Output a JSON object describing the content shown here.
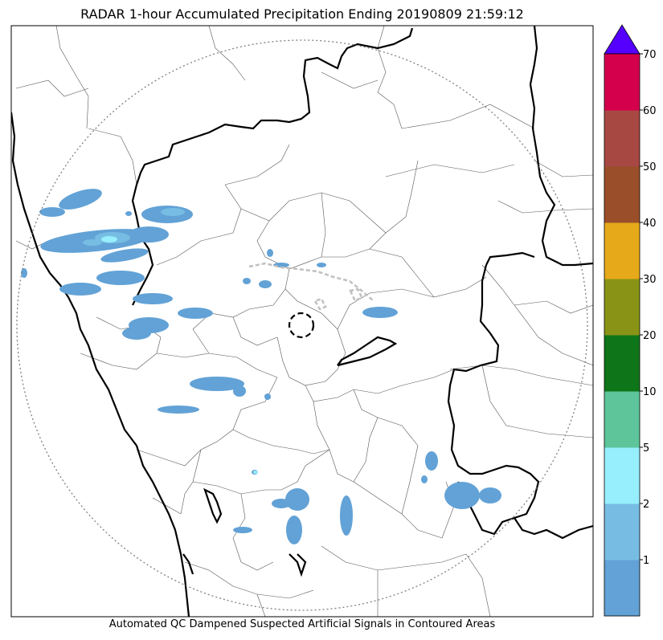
{
  "title": "RADAR 1-hour Accumulated Precipitation Ending 20190809 21:59:12",
  "footer": "Automated QC Dampened Suspected Artificial Signals in Contoured Areas",
  "colorbar": {
    "ticks": [
      "1",
      "2",
      "5",
      "10",
      "20",
      "30",
      "40",
      "50",
      "60",
      "70"
    ],
    "colors": [
      "#62a2d6",
      "#77bde3",
      "#97eefc",
      "#5ec49a",
      "#0f7519",
      "#899416",
      "#e6a919",
      "#9a4f2a",
      "#a84842",
      "#d4004c"
    ],
    "extend_color": "#5500ff",
    "outline_color": "#000000"
  },
  "map": {
    "range_ring_color": "#808080",
    "qc_contour_color": "#c0c0c0",
    "state_border_color": "#000000",
    "district_border_color": "#555555"
  }
}
